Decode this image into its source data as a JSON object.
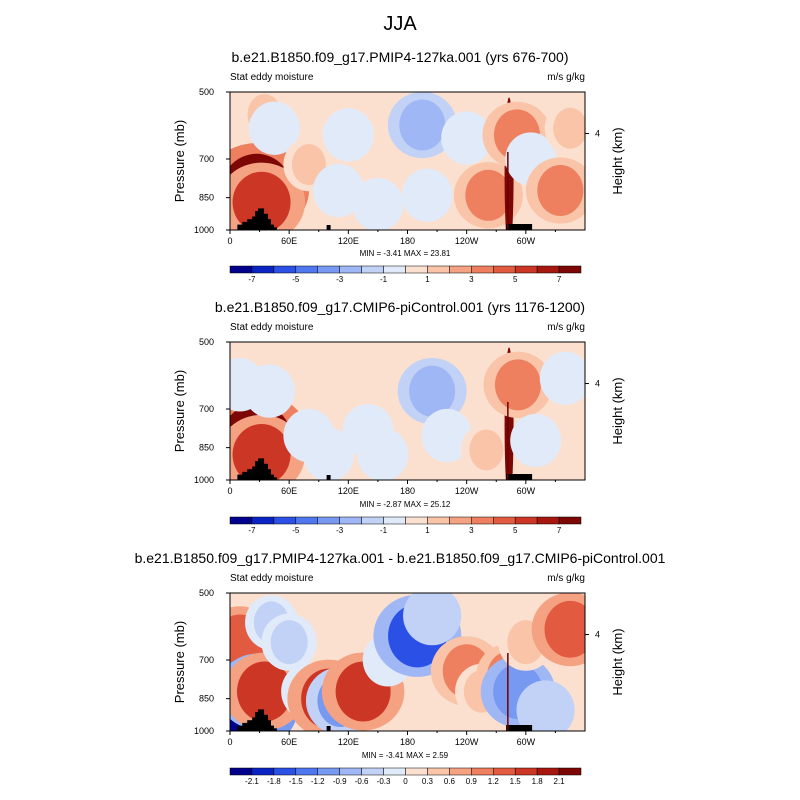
{
  "title": "JJA",
  "chart_data": [
    {
      "type": "heatmap",
      "title": "b.e21.B1850.f09_g17.PMIP4-127ka.001 (yrs 676-700)",
      "left_label": "Stat eddy moisture",
      "right_label": "m/s g/kg",
      "ylabel": "Pressure (mb)",
      "ylabel_right": "Height (km)",
      "y_ticks": [
        "500",
        "700",
        "850",
        "1000"
      ],
      "y_right_ticks": [
        "4"
      ],
      "x_ticks": [
        "0",
        "60E",
        "120E",
        "180",
        "120W",
        "60W"
      ],
      "stats": "MIN =  -3.41  MAX =  23.81",
      "colorbar_ticks": [
        "-7",
        "-5",
        "-3",
        "-1",
        "1",
        "3",
        "5",
        "7"
      ],
      "colorbar_min": -8,
      "colorbar_max": 8,
      "features": [
        {
          "lon": 27,
          "p": 815,
          "value": 7
        },
        {
          "lon": 32,
          "p": 870,
          "value": 5
        },
        {
          "lon": 35,
          "p": 560,
          "value": 1
        },
        {
          "lon": 45,
          "p": 600,
          "value": -1
        },
        {
          "lon": 80,
          "p": 720,
          "value": 1
        },
        {
          "lon": 110,
          "p": 820,
          "value": -1
        },
        {
          "lon": 120,
          "p": 620,
          "value": -1
        },
        {
          "lon": 150,
          "p": 880,
          "value": -1
        },
        {
          "lon": 195,
          "p": 590,
          "value": -3
        },
        {
          "lon": 200,
          "p": 840,
          "value": -1
        },
        {
          "lon": 240,
          "p": 630,
          "value": -1
        },
        {
          "lon": 262,
          "p": 840,
          "value": 3
        },
        {
          "lon": 283,
          "p": 760,
          "value": 20
        },
        {
          "lon": 291,
          "p": 620,
          "value": 3
        },
        {
          "lon": 305,
          "p": 700,
          "value": -1
        },
        {
          "lon": 335,
          "p": 820,
          "value": 3
        },
        {
          "lon": 345,
          "p": 600,
          "value": 1
        }
      ]
    },
    {
      "type": "heatmap",
      "title": "b.e21.B1850.f09_g17.CMIP6-piControl.001 (yrs 1176-1200)",
      "left_label": "Stat eddy moisture",
      "right_label": "m/s g/kg",
      "ylabel": "Pressure (mb)",
      "ylabel_right": "Height (km)",
      "y_ticks": [
        "500",
        "700",
        "850",
        "1000"
      ],
      "y_right_ticks": [
        "4"
      ],
      "x_ticks": [
        "0",
        "60E",
        "120E",
        "180",
        "120W",
        "60W"
      ],
      "stats": "MIN =  -2.87  MAX =  25.12",
      "colorbar_ticks": [
        "-7",
        "-5",
        "-3",
        "-1",
        "1",
        "3",
        "5",
        "7"
      ],
      "colorbar_min": -8,
      "colorbar_max": 8,
      "features": [
        {
          "lon": 27,
          "p": 815,
          "value": 7
        },
        {
          "lon": 32,
          "p": 880,
          "value": 5
        },
        {
          "lon": 10,
          "p": 620,
          "value": -1
        },
        {
          "lon": 40,
          "p": 640,
          "value": -1
        },
        {
          "lon": 80,
          "p": 800,
          "value": -1
        },
        {
          "lon": 100,
          "p": 880,
          "value": -1
        },
        {
          "lon": 140,
          "p": 780,
          "value": -1
        },
        {
          "lon": 155,
          "p": 880,
          "value": -1
        },
        {
          "lon": 205,
          "p": 640,
          "value": -3
        },
        {
          "lon": 220,
          "p": 800,
          "value": -1
        },
        {
          "lon": 260,
          "p": 860,
          "value": 1
        },
        {
          "lon": 283,
          "p": 760,
          "value": 20
        },
        {
          "lon": 292,
          "p": 620,
          "value": 3
        },
        {
          "lon": 310,
          "p": 820,
          "value": -1
        },
        {
          "lon": 340,
          "p": 600,
          "value": -1
        }
      ]
    },
    {
      "type": "heatmap",
      "title": "b.e21.B1850.f09_g17.PMIP4-127ka.001 - b.e21.B1850.f09_g17.CMIP6-piControl.001",
      "left_label": "Stat eddy moisture",
      "right_label": "m/s g/kg",
      "ylabel": "Pressure (mb)",
      "ylabel_right": "Height (km)",
      "y_ticks": [
        "500",
        "700",
        "850",
        "1000"
      ],
      "y_right_ticks": [
        "4"
      ],
      "x_ticks": [
        "0",
        "60E",
        "120E",
        "180",
        "120W",
        "60W"
      ],
      "stats": "MIN =  -3.41  MAX =   2.59",
      "colorbar_ticks": [
        "-2.1",
        "-1.8",
        "-1.5",
        "-1.2",
        "-0.9",
        "-0.6",
        "-0.3",
        "0",
        "0.3",
        "0.6",
        "0.9",
        "1.2",
        "1.5",
        "1.8",
        "2.1"
      ],
      "colorbar_min": -2.4,
      "colorbar_max": 2.4,
      "features": [
        {
          "lon": 10,
          "p": 640,
          "value": 1.2
        },
        {
          "lon": 18,
          "p": 880,
          "value": -2.2
        },
        {
          "lon": 28,
          "p": 820,
          "value": -1.4
        },
        {
          "lon": 35,
          "p": 820,
          "value": 1.5
        },
        {
          "lon": 42,
          "p": 580,
          "value": -0.4
        },
        {
          "lon": 60,
          "p": 640,
          "value": -0.5
        },
        {
          "lon": 80,
          "p": 820,
          "value": -0.5
        },
        {
          "lon": 100,
          "p": 850,
          "value": 1.5
        },
        {
          "lon": 112,
          "p": 860,
          "value": -1.0
        },
        {
          "lon": 135,
          "p": 820,
          "value": 1.5
        },
        {
          "lon": 160,
          "p": 700,
          "value": -0.3
        },
        {
          "lon": 190,
          "p": 620,
          "value": -1.7
        },
        {
          "lon": 205,
          "p": 560,
          "value": -0.6
        },
        {
          "lon": 240,
          "p": 740,
          "value": 1.1
        },
        {
          "lon": 255,
          "p": 820,
          "value": 0.4
        },
        {
          "lon": 283,
          "p": 760,
          "value": 0.9
        },
        {
          "lon": 292,
          "p": 820,
          "value": -1.2
        },
        {
          "lon": 300,
          "p": 640,
          "value": 0.5
        },
        {
          "lon": 320,
          "p": 900,
          "value": -0.6
        },
        {
          "lon": 345,
          "p": 600,
          "value": 1.3
        }
      ]
    }
  ]
}
